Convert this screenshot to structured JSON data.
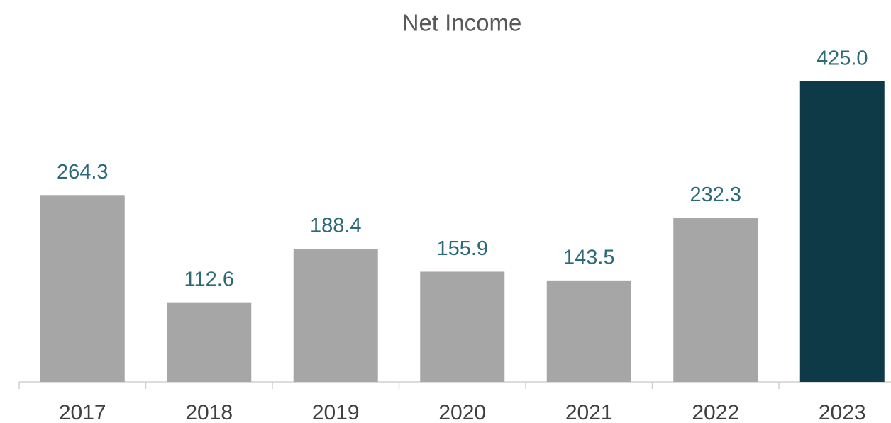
{
  "chart_data": {
    "type": "bar",
    "title": "Net Income",
    "categories": [
      "2017",
      "2018",
      "2019",
      "2020",
      "2021",
      "2022",
      "2023"
    ],
    "values": [
      264.3,
      112.6,
      188.4,
      155.9,
      143.5,
      232.3,
      425.0
    ],
    "value_labels": [
      "264.3",
      "112.6",
      "188.4",
      "155.9",
      "143.5",
      "232.3",
      "425.0"
    ],
    "colors": [
      "#a6a6a6",
      "#a6a6a6",
      "#a6a6a6",
      "#a6a6a6",
      "#a6a6a6",
      "#a6a6a6",
      "#0e3a47"
    ]
  }
}
